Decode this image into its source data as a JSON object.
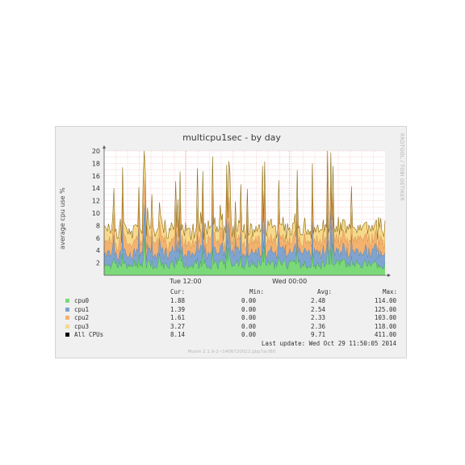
{
  "chart_data": {
    "type": "area",
    "stacked": true,
    "title": "multicpu1sec - by day",
    "ylabel": "average cpu use %",
    "ylim": [
      0,
      20
    ],
    "yticks": [
      "2",
      "4",
      "6",
      "8",
      "10",
      "12",
      "14",
      "16",
      "18",
      "20"
    ],
    "xtick_labels": [
      "Tue 12:00",
      "Wed 00:00"
    ],
    "grid": true,
    "series": [
      {
        "name": "cpu0",
        "color": "#7cd97a",
        "cur": "1.88",
        "min": "0.00",
        "avg": "2.48",
        "max": "114.00"
      },
      {
        "name": "cpu1",
        "color": "#7ea4cf",
        "cur": "1.39",
        "min": "0.00",
        "avg": "2.54",
        "max": "125.00"
      },
      {
        "name": "cpu2",
        "color": "#f4b26f",
        "cur": "1.61",
        "min": "0.00",
        "avg": "2.33",
        "max": "103.00"
      },
      {
        "name": "cpu3",
        "color": "#f7d98b",
        "cur": "3.27",
        "min": "0.00",
        "avg": "2.36",
        "max": "118.00"
      },
      {
        "name": "All CPUs",
        "color": "#000000",
        "cur": "8.14",
        "min": "0.00",
        "avg": "9.71",
        "max": "411.00"
      }
    ],
    "legend_headers": {
      "cur": "Cur:",
      "min": "Min:",
      "avg": "Avg:",
      "max": "Max:"
    }
  },
  "side_text": "RRDTOOL / TOBI OETIKER",
  "last_update": "Last update: Wed Oct 29 11:50:05 2014",
  "footer": "Munin 2.1.9-2~1406720022.gbp7acf80"
}
